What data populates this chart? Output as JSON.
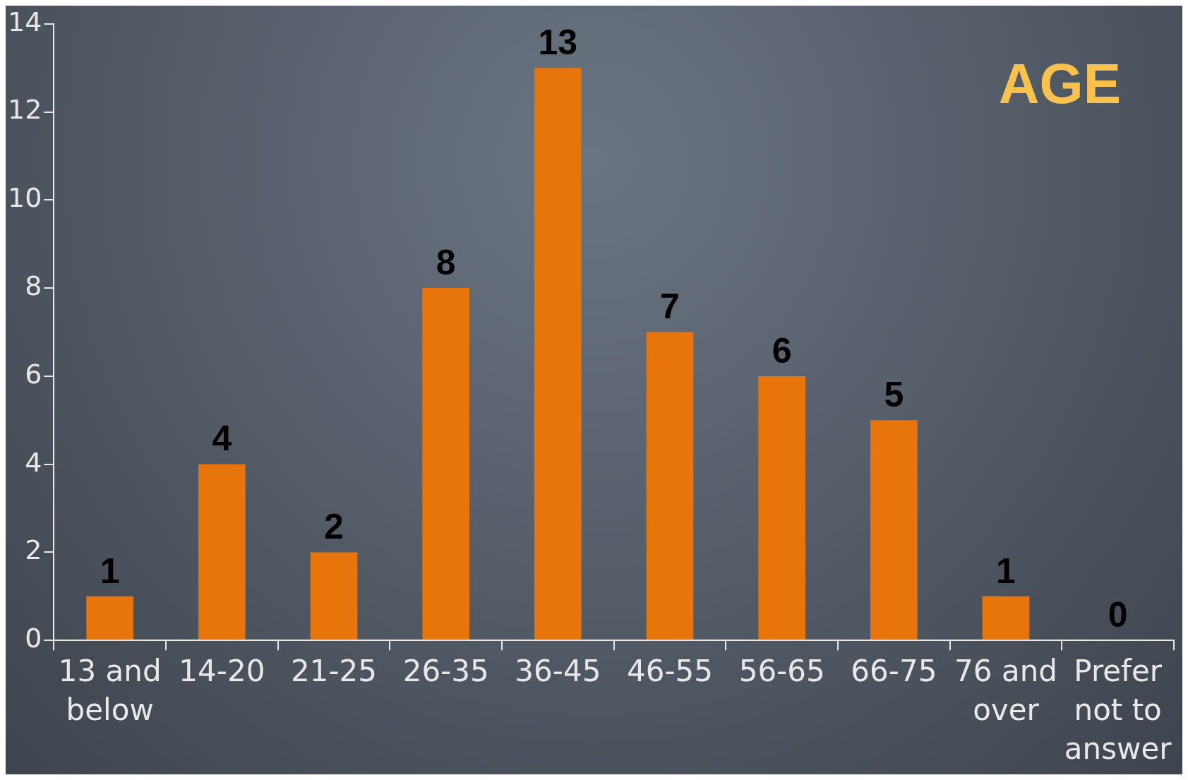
{
  "chart_data": {
    "type": "bar",
    "title": "AGE",
    "categories": [
      "13 and below",
      "14-20",
      "21-25",
      "26-35",
      "36-45",
      "46-55",
      "56-65",
      "66-75",
      "76 and over",
      "Prefer not to answer"
    ],
    "values": [
      1,
      4,
      2,
      8,
      13,
      7,
      6,
      5,
      1,
      0
    ],
    "color": "#e8740c",
    "ylim": [
      0,
      14
    ],
    "yticks": [
      0,
      2,
      4,
      6,
      8,
      10,
      12,
      14
    ],
    "data_labels": true,
    "grid": false,
    "legend": false
  }
}
